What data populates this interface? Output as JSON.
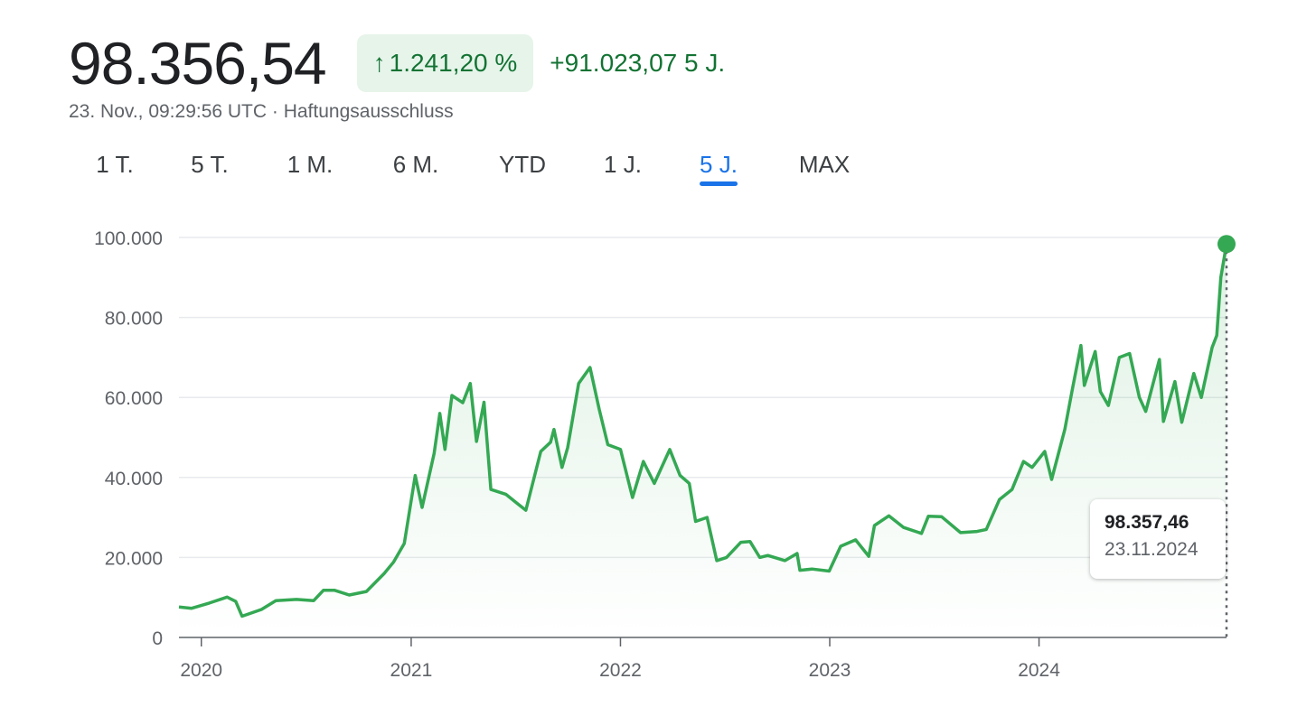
{
  "header": {
    "price": "98.356,54",
    "change_arrow": "↑",
    "change_percent": "1.241,20 %",
    "change_absolute": "+91.023,07 5 J.",
    "timestamp": "23. Nov., 09:29:56 UTC · Haftungsausschluss"
  },
  "tabs": [
    {
      "label": "1 T.",
      "active": false
    },
    {
      "label": "5 T.",
      "active": false
    },
    {
      "label": "1 M.",
      "active": false
    },
    {
      "label": "6 M.",
      "active": false
    },
    {
      "label": "YTD",
      "active": false
    },
    {
      "label": "1 J.",
      "active": false
    },
    {
      "label": "5 J.",
      "active": true
    },
    {
      "label": "MAX",
      "active": false
    }
  ],
  "tooltip": {
    "value": "98.357,46",
    "date": "23.11.2024"
  },
  "colors": {
    "line": "#34a853",
    "positive": "#137333",
    "badge_bg": "#e6f4ea",
    "accent": "#1a73e8"
  },
  "chart_data": {
    "type": "area",
    "title": "",
    "xlabel": "",
    "ylabel": "",
    "ylim": [
      0,
      100000
    ],
    "xlim": [
      "2019-11-23",
      "2024-11-23"
    ],
    "y_ticks": [
      0,
      20000,
      40000,
      60000,
      80000,
      100000
    ],
    "y_tick_labels": [
      "0",
      "20.000",
      "40.000",
      "60.000",
      "80.000",
      "100.000"
    ],
    "x_ticks": [
      "2020-01-01",
      "2021-01-01",
      "2022-01-01",
      "2023-01-01",
      "2024-01-01"
    ],
    "x_tick_labels": [
      "2020",
      "2021",
      "2022",
      "2023",
      "2024"
    ],
    "grid": true,
    "series": [
      {
        "values": [
          [
            "2019-11-23",
            7600
          ],
          [
            "2019-12-15",
            7300
          ],
          [
            "2020-01-15",
            8600
          ],
          [
            "2020-02-15",
            10100
          ],
          [
            "2020-03-01",
            9000
          ],
          [
            "2020-03-12",
            5300
          ],
          [
            "2020-04-15",
            7000
          ],
          [
            "2020-05-10",
            9200
          ],
          [
            "2020-06-15",
            9500
          ],
          [
            "2020-07-15",
            9200
          ],
          [
            "2020-08-01",
            11800
          ],
          [
            "2020-08-20",
            11800
          ],
          [
            "2020-09-15",
            10600
          ],
          [
            "2020-10-15",
            11500
          ],
          [
            "2020-11-15",
            16000
          ],
          [
            "2020-12-01",
            18800
          ],
          [
            "2020-12-20",
            23500
          ],
          [
            "2021-01-08",
            40500
          ],
          [
            "2021-01-20",
            32500
          ],
          [
            "2021-02-10",
            46000
          ],
          [
            "2021-02-20",
            56000
          ],
          [
            "2021-03-01",
            47000
          ],
          [
            "2021-03-13",
            60500
          ],
          [
            "2021-04-01",
            58700
          ],
          [
            "2021-04-14",
            63500
          ],
          [
            "2021-04-25",
            49000
          ],
          [
            "2021-05-08",
            58800
          ],
          [
            "2021-05-20",
            37000
          ],
          [
            "2021-06-15",
            35800
          ],
          [
            "2021-07-05",
            33500
          ],
          [
            "2021-07-20",
            31800
          ],
          [
            "2021-08-15",
            46500
          ],
          [
            "2021-09-01",
            48800
          ],
          [
            "2021-09-07",
            52000
          ],
          [
            "2021-09-21",
            42500
          ],
          [
            "2021-10-01",
            47500
          ],
          [
            "2021-10-20",
            63500
          ],
          [
            "2021-11-09",
            67500
          ],
          [
            "2021-11-25",
            57000
          ],
          [
            "2021-12-10",
            48200
          ],
          [
            "2022-01-01",
            47000
          ],
          [
            "2022-01-22",
            35000
          ],
          [
            "2022-02-10",
            44000
          ],
          [
            "2022-03-01",
            38500
          ],
          [
            "2022-03-28",
            47000
          ],
          [
            "2022-04-15",
            40500
          ],
          [
            "2022-05-01",
            38500
          ],
          [
            "2022-05-12",
            29000
          ],
          [
            "2022-06-01",
            30000
          ],
          [
            "2022-06-18",
            19200
          ],
          [
            "2022-07-05",
            20000
          ],
          [
            "2022-07-30",
            23800
          ],
          [
            "2022-08-15",
            24000
          ],
          [
            "2022-09-01",
            20000
          ],
          [
            "2022-09-15",
            20500
          ],
          [
            "2022-10-15",
            19200
          ],
          [
            "2022-11-05",
            21000
          ],
          [
            "2022-11-10",
            16800
          ],
          [
            "2022-12-01",
            17100
          ],
          [
            "2022-12-31",
            16600
          ],
          [
            "2023-01-20",
            22800
          ],
          [
            "2023-02-15",
            24400
          ],
          [
            "2023-03-10",
            20300
          ],
          [
            "2023-03-20",
            28000
          ],
          [
            "2023-04-14",
            30400
          ],
          [
            "2023-05-10",
            27500
          ],
          [
            "2023-06-10",
            26000
          ],
          [
            "2023-06-22",
            30300
          ],
          [
            "2023-07-15",
            30200
          ],
          [
            "2023-08-17",
            26200
          ],
          [
            "2023-09-15",
            26500
          ],
          [
            "2023-10-01",
            27000
          ],
          [
            "2023-10-24",
            34500
          ],
          [
            "2023-11-15",
            37000
          ],
          [
            "2023-12-05",
            44000
          ],
          [
            "2023-12-20",
            42500
          ],
          [
            "2024-01-11",
            46500
          ],
          [
            "2024-01-23",
            39500
          ],
          [
            "2024-02-15",
            52000
          ],
          [
            "2024-02-28",
            62000
          ],
          [
            "2024-03-14",
            73000
          ],
          [
            "2024-03-20",
            63000
          ],
          [
            "2024-04-08",
            71500
          ],
          [
            "2024-04-17",
            61500
          ],
          [
            "2024-05-01",
            58000
          ],
          [
            "2024-05-20",
            70000
          ],
          [
            "2024-06-07",
            71000
          ],
          [
            "2024-06-24",
            60000
          ],
          [
            "2024-07-05",
            56500
          ],
          [
            "2024-07-29",
            69500
          ],
          [
            "2024-08-05",
            54000
          ],
          [
            "2024-08-25",
            64000
          ],
          [
            "2024-09-06",
            53800
          ],
          [
            "2024-09-27",
            66000
          ],
          [
            "2024-10-10",
            60000
          ],
          [
            "2024-10-29",
            72500
          ],
          [
            "2024-11-06",
            75500
          ],
          [
            "2024-11-13",
            90000
          ],
          [
            "2024-11-23",
            98357
          ]
        ]
      }
    ]
  }
}
